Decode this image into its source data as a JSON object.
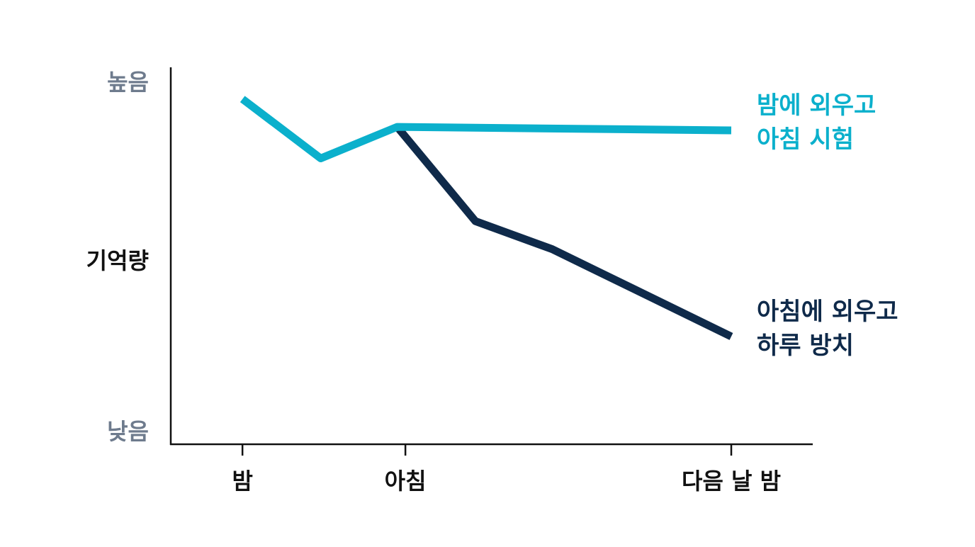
{
  "chart_data": {
    "type": "line",
    "title": "",
    "ylabel": "기억량",
    "xlabel": "",
    "x_ticks": [
      {
        "label": "밤",
        "x": 0
      },
      {
        "label": "아침",
        "x": 1
      },
      {
        "label": "다음 날 밤",
        "x": 3
      }
    ],
    "y_ticks": [
      {
        "label": "높음",
        "y": 1
      },
      {
        "label": "낮음",
        "y": 0
      }
    ],
    "xlim": [
      -0.44,
      3.5
    ],
    "ylim": [
      0,
      1
    ],
    "grid": false,
    "series": [
      {
        "name_lines": [
          "밤에 외우고",
          "아침 시험"
        ],
        "color": "#0bb0cc",
        "x": [
          0,
          0.48,
          0.95,
          3.0
        ],
        "y": [
          0.95,
          0.78,
          0.87,
          0.86
        ]
      },
      {
        "name_lines": [
          "아침에 외우고",
          "하루 방치"
        ],
        "color": "#0f2a4a",
        "x": [
          0.95,
          1.43,
          1.9,
          3.0
        ],
        "y": [
          0.87,
          0.6,
          0.52,
          0.27
        ]
      }
    ]
  }
}
